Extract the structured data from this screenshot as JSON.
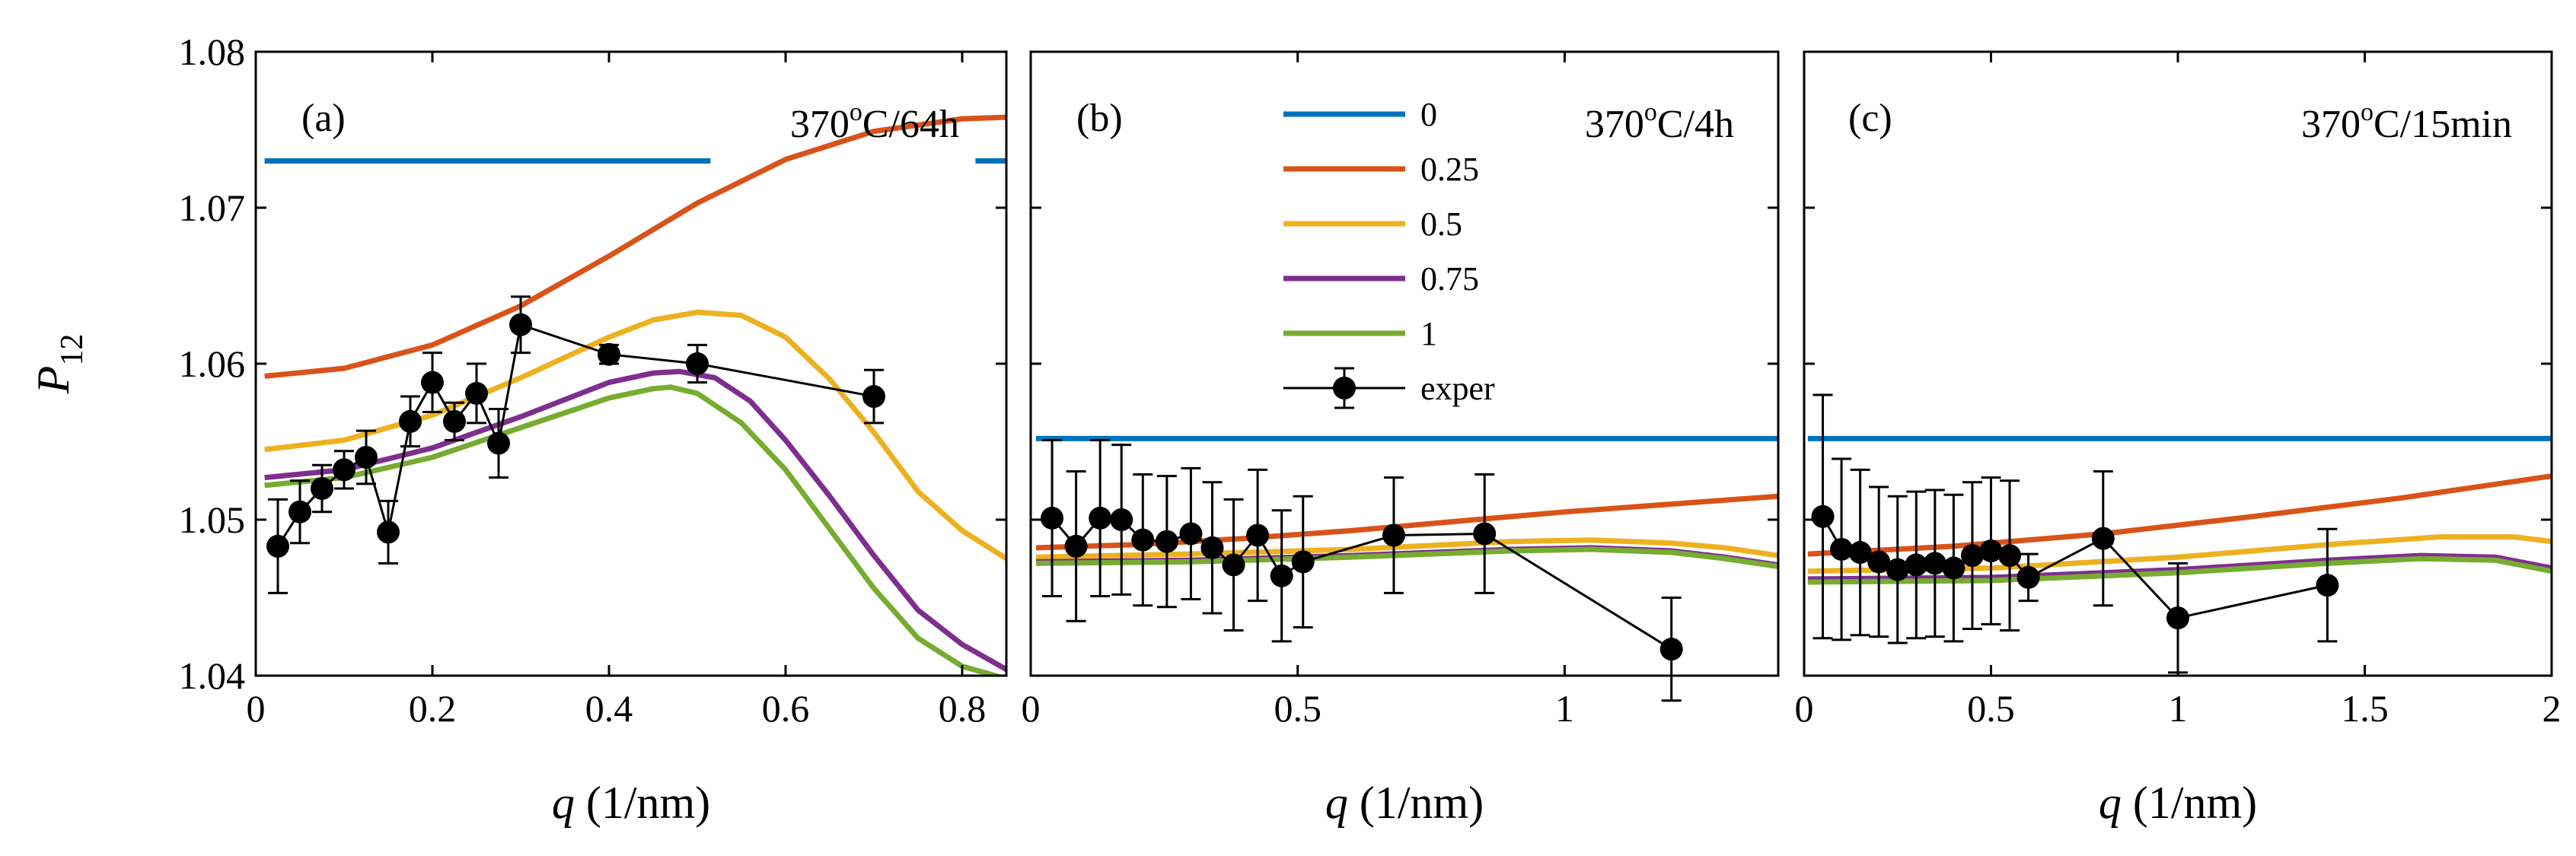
{
  "chart_data": [
    {
      "type": "line",
      "panel": "(a)",
      "condition": {
        "main": "370",
        "sup": "o",
        "rest": "C/64h"
      },
      "xlabel": {
        "var": "q",
        "unit": " (1/nm)"
      },
      "ylabel": {
        "var": "P",
        "sub": "12"
      },
      "xlim": [
        0,
        0.85
      ],
      "ylim": [
        1.04,
        1.08
      ],
      "xticks": [
        0,
        0.2,
        0.4,
        0.6,
        0.8
      ],
      "xtick_labels": [
        "0",
        "0.2",
        "0.4",
        "0.6",
        "0.8"
      ],
      "yticks": [
        1.04,
        1.05,
        1.06,
        1.07,
        1.08
      ],
      "ytick_labels": [
        "1.04",
        "1.05",
        "1.06",
        "1.07",
        "1.08"
      ],
      "series": [
        {
          "name": "0",
          "color": "#0072BD",
          "segments": [
            {
              "x": [
                0.01,
                0.515
              ],
              "y": [
                1.073,
                1.073
              ]
            },
            {
              "x": [
                0.815,
                0.85
              ],
              "y": [
                1.073,
                1.073
              ]
            }
          ]
        },
        {
          "name": "0.25",
          "color": "#D95319",
          "x": [
            0.01,
            0.1,
            0.2,
            0.3,
            0.4,
            0.5,
            0.6,
            0.7,
            0.8,
            0.85
          ],
          "y": [
            1.0592,
            1.0597,
            1.0612,
            1.0637,
            1.0669,
            1.0703,
            1.0731,
            1.0749,
            1.0757,
            1.0758
          ]
        },
        {
          "name": "0.5",
          "color": "#EDB120",
          "x": [
            0.01,
            0.1,
            0.2,
            0.3,
            0.4,
            0.45,
            0.5,
            0.55,
            0.6,
            0.65,
            0.7,
            0.75,
            0.8,
            0.85
          ],
          "y": [
            1.0545,
            1.0551,
            1.0567,
            1.0591,
            1.0617,
            1.0628,
            1.0633,
            1.0631,
            1.0617,
            1.059,
            1.0556,
            1.0518,
            1.0493,
            1.0475
          ]
        },
        {
          "name": "0.75",
          "color": "#7E2F8E",
          "x": [
            0.01,
            0.1,
            0.2,
            0.3,
            0.4,
            0.45,
            0.48,
            0.52,
            0.56,
            0.6,
            0.65,
            0.7,
            0.75,
            0.8,
            0.85
          ],
          "y": [
            1.0527,
            1.0532,
            1.0546,
            1.0566,
            1.0588,
            1.0594,
            1.0595,
            1.0591,
            1.0576,
            1.0551,
            1.0515,
            1.0477,
            1.0442,
            1.042,
            1.0404
          ]
        },
        {
          "name": "1",
          "color": "#77AC30",
          "x": [
            0.01,
            0.1,
            0.2,
            0.3,
            0.4,
            0.45,
            0.47,
            0.5,
            0.55,
            0.6,
            0.65,
            0.7,
            0.75,
            0.8,
            0.85
          ],
          "y": [
            1.0522,
            1.0527,
            1.054,
            1.0559,
            1.0578,
            1.0584,
            1.0585,
            1.0581,
            1.0562,
            1.0532,
            1.0494,
            1.0456,
            1.0424,
            1.0406,
            1.0398
          ]
        }
      ],
      "experiment": {
        "name": "exper",
        "x": [
          0.025,
          0.05,
          0.075,
          0.1,
          0.125,
          0.15,
          0.175,
          0.2,
          0.225,
          0.25,
          0.275,
          0.3,
          0.4,
          0.5,
          0.7
        ],
        "y": [
          1.0483,
          1.0505,
          1.052,
          1.0532,
          1.054,
          1.0492,
          1.0563,
          1.0588,
          1.0563,
          1.0581,
          1.0549,
          1.0625,
          1.0606,
          1.06,
          1.0579
        ],
        "err": [
          0.003,
          0.002,
          0.0015,
          0.0012,
          0.0017,
          0.002,
          0.0016,
          0.0019,
          0.0012,
          0.0019,
          0.0022,
          0.0018,
          0.0006,
          0.0012,
          0.0017
        ]
      }
    },
    {
      "type": "line",
      "panel": "(b)",
      "condition": {
        "main": "370",
        "sup": "o",
        "rest": "C/4h"
      },
      "xlabel": {
        "var": "q",
        "unit": " (1/nm)"
      },
      "xlim": [
        0,
        1.4
      ],
      "ylim": [
        1.04,
        1.08
      ],
      "xticks": [
        0,
        0.5,
        1
      ],
      "xtick_labels": [
        "0",
        "0.5",
        "1"
      ],
      "yticks": [
        1.04,
        1.05,
        1.06,
        1.07,
        1.08
      ],
      "series": [
        {
          "name": "0",
          "color": "#0072BD",
          "x": [
            0.01,
            1.4
          ],
          "y": [
            1.0552,
            1.0552
          ]
        },
        {
          "name": "0.25",
          "color": "#D95319",
          "x": [
            0.01,
            0.2,
            0.4,
            0.6,
            0.8,
            1.0,
            1.2,
            1.4
          ],
          "y": [
            1.0482,
            1.0484,
            1.0488,
            1.0493,
            1.0499,
            1.0505,
            1.051,
            1.0515
          ]
        },
        {
          "name": "0.5",
          "color": "#EDB120",
          "x": [
            0.01,
            0.3,
            0.6,
            0.9,
            1.05,
            1.2,
            1.3,
            1.4
          ],
          "y": [
            1.0476,
            1.0478,
            1.0481,
            1.0486,
            1.0487,
            1.0485,
            1.0482,
            1.0477
          ]
        },
        {
          "name": "0.75",
          "color": "#7E2F8E",
          "x": [
            0.01,
            0.3,
            0.6,
            0.9,
            1.05,
            1.2,
            1.3,
            1.4
          ],
          "y": [
            1.0473,
            1.0474,
            1.0477,
            1.0481,
            1.0482,
            1.048,
            1.0476,
            1.0471
          ]
        },
        {
          "name": "1",
          "color": "#77AC30",
          "x": [
            0.01,
            0.3,
            0.6,
            0.9,
            1.05,
            1.2,
            1.3,
            1.4
          ],
          "y": [
            1.0472,
            1.0473,
            1.0476,
            1.048,
            1.0481,
            1.0479,
            1.0475,
            1.047
          ]
        }
      ],
      "experiment": {
        "name": "exper",
        "x": [
          0.04,
          0.085,
          0.13,
          0.17,
          0.21,
          0.255,
          0.3,
          0.34,
          0.38,
          0.425,
          0.47,
          0.51,
          0.68,
          0.85,
          1.2
        ],
        "y": [
          1.0501,
          1.0483,
          1.0501,
          1.05,
          1.0487,
          1.0486,
          1.0491,
          1.0482,
          1.0471,
          1.049,
          1.0464,
          1.0473,
          1.049,
          1.0491,
          1.0417
        ],
        "err": [
          0.005,
          0.0048,
          0.005,
          0.0048,
          0.0042,
          0.0042,
          0.0042,
          0.0042,
          0.0042,
          0.0042,
          0.0042,
          0.0042,
          0.0037,
          0.0038,
          0.0033
        ]
      }
    },
    {
      "type": "line",
      "panel": "(c)",
      "condition": {
        "main": "370",
        "sup": "o",
        "rest": "C/15min"
      },
      "xlabel": {
        "var": "q",
        "unit": " (1/nm)"
      },
      "xlim": [
        0,
        2
      ],
      "ylim": [
        1.04,
        1.08
      ],
      "xticks": [
        0,
        0.5,
        1,
        1.5,
        2
      ],
      "xtick_labels": [
        "0",
        "0.5",
        "1",
        "1.5",
        "2"
      ],
      "yticks": [
        1.04,
        1.05,
        1.06,
        1.07,
        1.08
      ],
      "series": [
        {
          "name": "0",
          "color": "#0072BD",
          "x": [
            0.01,
            2
          ],
          "y": [
            1.0552,
            1.0552
          ]
        },
        {
          "name": "0.25",
          "color": "#D95319",
          "x": [
            0.01,
            0.4,
            0.8,
            1.2,
            1.6,
            2.0
          ],
          "y": [
            1.0478,
            1.0483,
            1.0491,
            1.0502,
            1.0514,
            1.0528
          ]
        },
        {
          "name": "0.5",
          "color": "#EDB120",
          "x": [
            0.01,
            0.5,
            1.0,
            1.4,
            1.7,
            1.9,
            2.0
          ],
          "y": [
            1.0467,
            1.0469,
            1.0476,
            1.0484,
            1.0489,
            1.0489,
            1.0486
          ]
        },
        {
          "name": "0.75",
          "color": "#7E2F8E",
          "x": [
            0.01,
            0.5,
            1.0,
            1.4,
            1.65,
            1.85,
            2.0
          ],
          "y": [
            1.0462,
            1.0463,
            1.0468,
            1.0474,
            1.0477,
            1.0476,
            1.0469
          ]
        },
        {
          "name": "1",
          "color": "#77AC30",
          "x": [
            0.01,
            0.5,
            1.0,
            1.4,
            1.65,
            1.85,
            2.0
          ],
          "y": [
            1.046,
            1.0461,
            1.0466,
            1.0472,
            1.0475,
            1.0474,
            1.0467
          ]
        }
      ],
      "experiment": {
        "name": "exper",
        "x": [
          0.05,
          0.1,
          0.15,
          0.2,
          0.25,
          0.3,
          0.35,
          0.4,
          0.45,
          0.5,
          0.55,
          0.6,
          0.8,
          1.0,
          1.4
        ],
        "y": [
          1.0502,
          1.0481,
          1.0479,
          1.0473,
          1.0468,
          1.0471,
          1.0472,
          1.0469,
          1.0477,
          1.048,
          1.0477,
          1.0463,
          1.0488,
          1.0437,
          1.0458
        ],
        "err": [
          0.0078,
          0.0058,
          0.0053,
          0.0048,
          0.0047,
          0.0047,
          0.0047,
          0.0047,
          0.0047,
          0.0047,
          0.0048,
          0.0015,
          0.0043,
          0.0035,
          0.0036
        ]
      }
    }
  ],
  "legend": {
    "panel_index": 1,
    "entries": [
      {
        "label": "0",
        "color": "#0072BD",
        "kind": "line"
      },
      {
        "label": "0.25",
        "color": "#D95319",
        "kind": "line"
      },
      {
        "label": "0.5",
        "color": "#EDB120",
        "kind": "line"
      },
      {
        "label": "0.75",
        "color": "#7E2F8E",
        "kind": "line"
      },
      {
        "label": "1",
        "color": "#77AC30",
        "kind": "line"
      },
      {
        "label": "exper",
        "color": "#000000",
        "kind": "marker"
      }
    ]
  }
}
